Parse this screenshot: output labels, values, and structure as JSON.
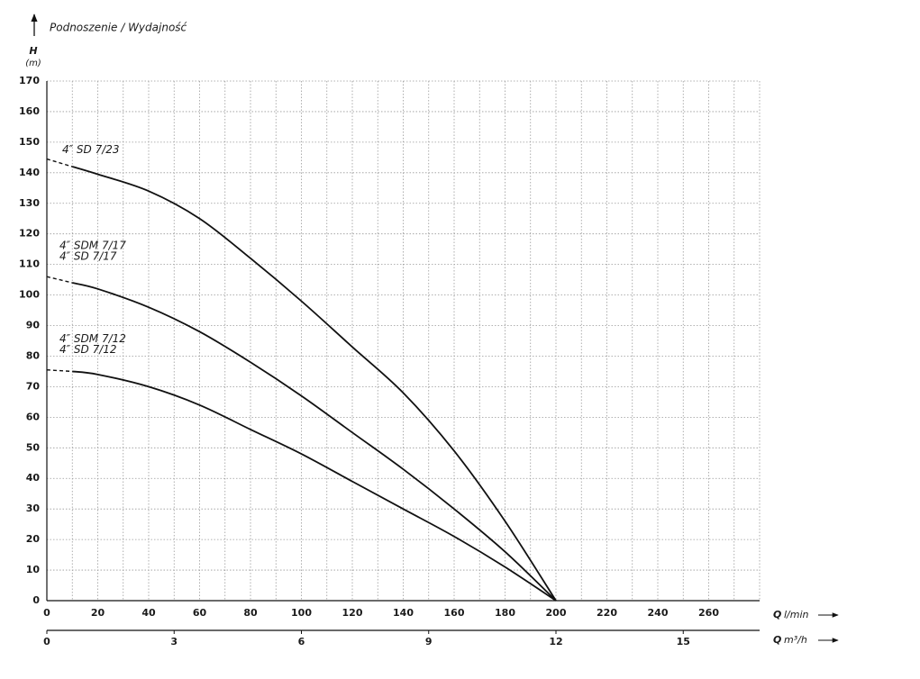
{
  "chart_data": {
    "type": "line",
    "title": "Podnoszenie / Wydajność",
    "y_label": {
      "symbol": "H",
      "unit": "(m)"
    },
    "x_label": {
      "symbol": "Q",
      "unit": "l/min"
    },
    "x2_label": {
      "symbol": "Q",
      "unit": "m³/h"
    },
    "xlim": [
      0,
      280
    ],
    "xticks": [
      0,
      20,
      40,
      60,
      80,
      100,
      120,
      140,
      160,
      180,
      200,
      220,
      240,
      260
    ],
    "xminor": [
      10,
      30,
      50,
      70,
      90,
      110,
      130,
      150,
      170,
      190,
      210,
      230,
      250,
      270
    ],
    "x2lim": [
      0,
      16.8
    ],
    "x2ticks": [
      0,
      3,
      6,
      9,
      12,
      15
    ],
    "ylim": [
      0,
      170
    ],
    "yticks": [
      0,
      10,
      20,
      30,
      40,
      50,
      60,
      70,
      80,
      90,
      100,
      110,
      120,
      130,
      140,
      150,
      160,
      170
    ],
    "grid": true,
    "color": "#111111",
    "x": [
      0,
      10,
      20,
      40,
      60,
      80,
      100,
      120,
      140,
      160,
      180,
      200
    ],
    "series": [
      {
        "labels": [
          "4″ SD 7/23"
        ],
        "values": [
          144.5,
          142,
          139.5,
          134,
          125,
          112,
          98,
          83,
          68,
          49,
          26,
          0
        ]
      },
      {
        "labels": [
          "4″ SDM 7/17",
          "4″ SD 7/17"
        ],
        "values": [
          106,
          104,
          102,
          96,
          88,
          78,
          67,
          55,
          43,
          30,
          16,
          0
        ]
      },
      {
        "labels": [
          "4″ SDM 7/12",
          "4″ SD 7/12"
        ],
        "values": [
          75.5,
          75,
          74,
          70,
          64,
          56,
          48,
          39,
          30,
          21,
          11,
          0
        ]
      }
    ]
  }
}
